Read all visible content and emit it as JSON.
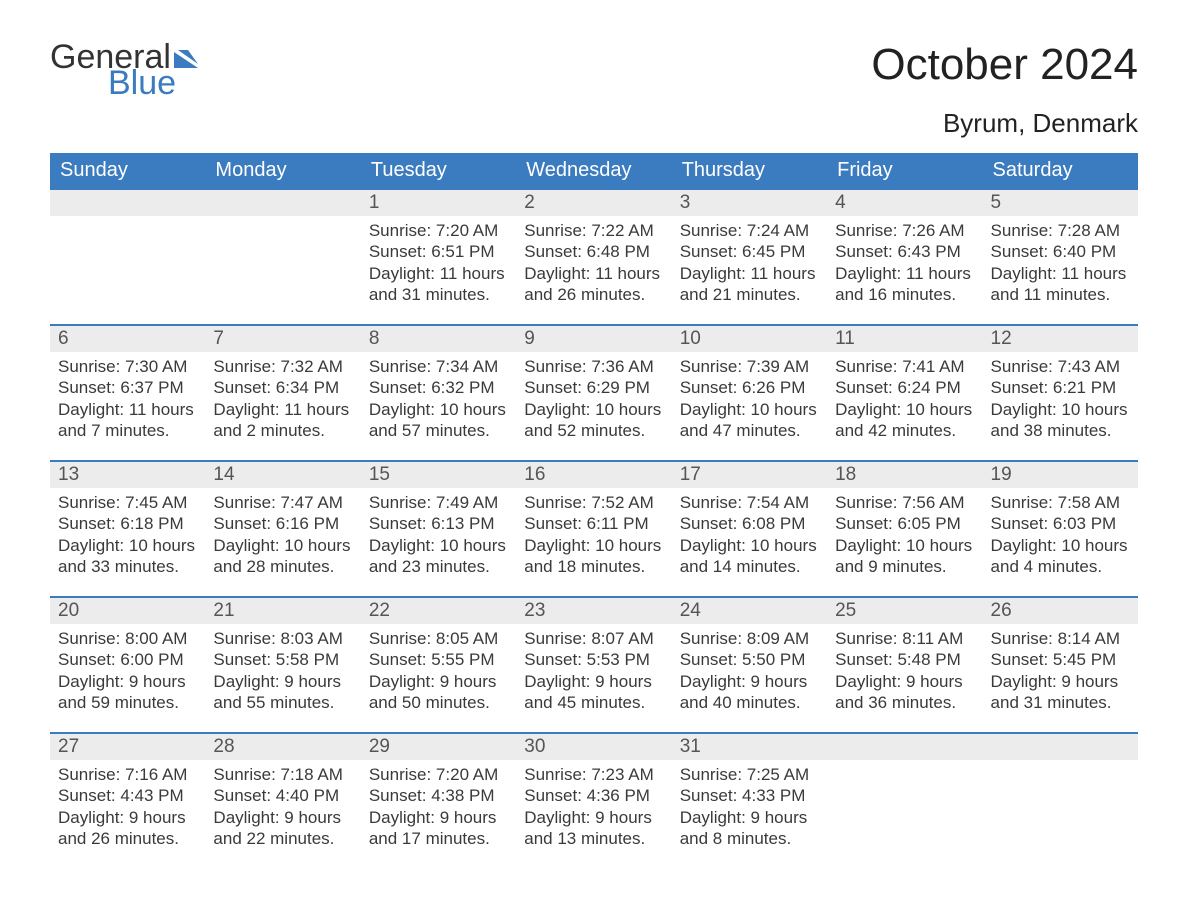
{
  "logo": {
    "word1": "General",
    "word2": "Blue",
    "flag_color": "#3b7bbf"
  },
  "title": "October 2024",
  "location": "Byrum, Denmark",
  "colors": {
    "header_bg": "#3b7bbf",
    "header_text": "#ffffff",
    "row_gray": "#ececec",
    "row_divider": "#3b7bbf",
    "page_bg": "#ffffff",
    "text": "#3a3a3a"
  },
  "weekdays": [
    "Sunday",
    "Monday",
    "Tuesday",
    "Wednesday",
    "Thursday",
    "Friday",
    "Saturday"
  ],
  "weeks": [
    [
      null,
      null,
      {
        "day": 1,
        "sunrise": "7:20 AM",
        "sunset": "6:51 PM",
        "daylight": "11 hours and 31 minutes."
      },
      {
        "day": 2,
        "sunrise": "7:22 AM",
        "sunset": "6:48 PM",
        "daylight": "11 hours and 26 minutes."
      },
      {
        "day": 3,
        "sunrise": "7:24 AM",
        "sunset": "6:45 PM",
        "daylight": "11 hours and 21 minutes."
      },
      {
        "day": 4,
        "sunrise": "7:26 AM",
        "sunset": "6:43 PM",
        "daylight": "11 hours and 16 minutes."
      },
      {
        "day": 5,
        "sunrise": "7:28 AM",
        "sunset": "6:40 PM",
        "daylight": "11 hours and 11 minutes."
      }
    ],
    [
      {
        "day": 6,
        "sunrise": "7:30 AM",
        "sunset": "6:37 PM",
        "daylight": "11 hours and 7 minutes."
      },
      {
        "day": 7,
        "sunrise": "7:32 AM",
        "sunset": "6:34 PM",
        "daylight": "11 hours and 2 minutes."
      },
      {
        "day": 8,
        "sunrise": "7:34 AM",
        "sunset": "6:32 PM",
        "daylight": "10 hours and 57 minutes."
      },
      {
        "day": 9,
        "sunrise": "7:36 AM",
        "sunset": "6:29 PM",
        "daylight": "10 hours and 52 minutes."
      },
      {
        "day": 10,
        "sunrise": "7:39 AM",
        "sunset": "6:26 PM",
        "daylight": "10 hours and 47 minutes."
      },
      {
        "day": 11,
        "sunrise": "7:41 AM",
        "sunset": "6:24 PM",
        "daylight": "10 hours and 42 minutes."
      },
      {
        "day": 12,
        "sunrise": "7:43 AM",
        "sunset": "6:21 PM",
        "daylight": "10 hours and 38 minutes."
      }
    ],
    [
      {
        "day": 13,
        "sunrise": "7:45 AM",
        "sunset": "6:18 PM",
        "daylight": "10 hours and 33 minutes."
      },
      {
        "day": 14,
        "sunrise": "7:47 AM",
        "sunset": "6:16 PM",
        "daylight": "10 hours and 28 minutes."
      },
      {
        "day": 15,
        "sunrise": "7:49 AM",
        "sunset": "6:13 PM",
        "daylight": "10 hours and 23 minutes."
      },
      {
        "day": 16,
        "sunrise": "7:52 AM",
        "sunset": "6:11 PM",
        "daylight": "10 hours and 18 minutes."
      },
      {
        "day": 17,
        "sunrise": "7:54 AM",
        "sunset": "6:08 PM",
        "daylight": "10 hours and 14 minutes."
      },
      {
        "day": 18,
        "sunrise": "7:56 AM",
        "sunset": "6:05 PM",
        "daylight": "10 hours and 9 minutes."
      },
      {
        "day": 19,
        "sunrise": "7:58 AM",
        "sunset": "6:03 PM",
        "daylight": "10 hours and 4 minutes."
      }
    ],
    [
      {
        "day": 20,
        "sunrise": "8:00 AM",
        "sunset": "6:00 PM",
        "daylight": "9 hours and 59 minutes."
      },
      {
        "day": 21,
        "sunrise": "8:03 AM",
        "sunset": "5:58 PM",
        "daylight": "9 hours and 55 minutes."
      },
      {
        "day": 22,
        "sunrise": "8:05 AM",
        "sunset": "5:55 PM",
        "daylight": "9 hours and 50 minutes."
      },
      {
        "day": 23,
        "sunrise": "8:07 AM",
        "sunset": "5:53 PM",
        "daylight": "9 hours and 45 minutes."
      },
      {
        "day": 24,
        "sunrise": "8:09 AM",
        "sunset": "5:50 PM",
        "daylight": "9 hours and 40 minutes."
      },
      {
        "day": 25,
        "sunrise": "8:11 AM",
        "sunset": "5:48 PM",
        "daylight": "9 hours and 36 minutes."
      },
      {
        "day": 26,
        "sunrise": "8:14 AM",
        "sunset": "5:45 PM",
        "daylight": "9 hours and 31 minutes."
      }
    ],
    [
      {
        "day": 27,
        "sunrise": "7:16 AM",
        "sunset": "4:43 PM",
        "daylight": "9 hours and 26 minutes."
      },
      {
        "day": 28,
        "sunrise": "7:18 AM",
        "sunset": "4:40 PM",
        "daylight": "9 hours and 22 minutes."
      },
      {
        "day": 29,
        "sunrise": "7:20 AM",
        "sunset": "4:38 PM",
        "daylight": "9 hours and 17 minutes."
      },
      {
        "day": 30,
        "sunrise": "7:23 AM",
        "sunset": "4:36 PM",
        "daylight": "9 hours and 13 minutes."
      },
      {
        "day": 31,
        "sunrise": "7:25 AM",
        "sunset": "4:33 PM",
        "daylight": "9 hours and 8 minutes."
      },
      null,
      null
    ]
  ],
  "labels": {
    "sunrise": "Sunrise: ",
    "sunset": "Sunset: ",
    "daylight": "Daylight: "
  }
}
